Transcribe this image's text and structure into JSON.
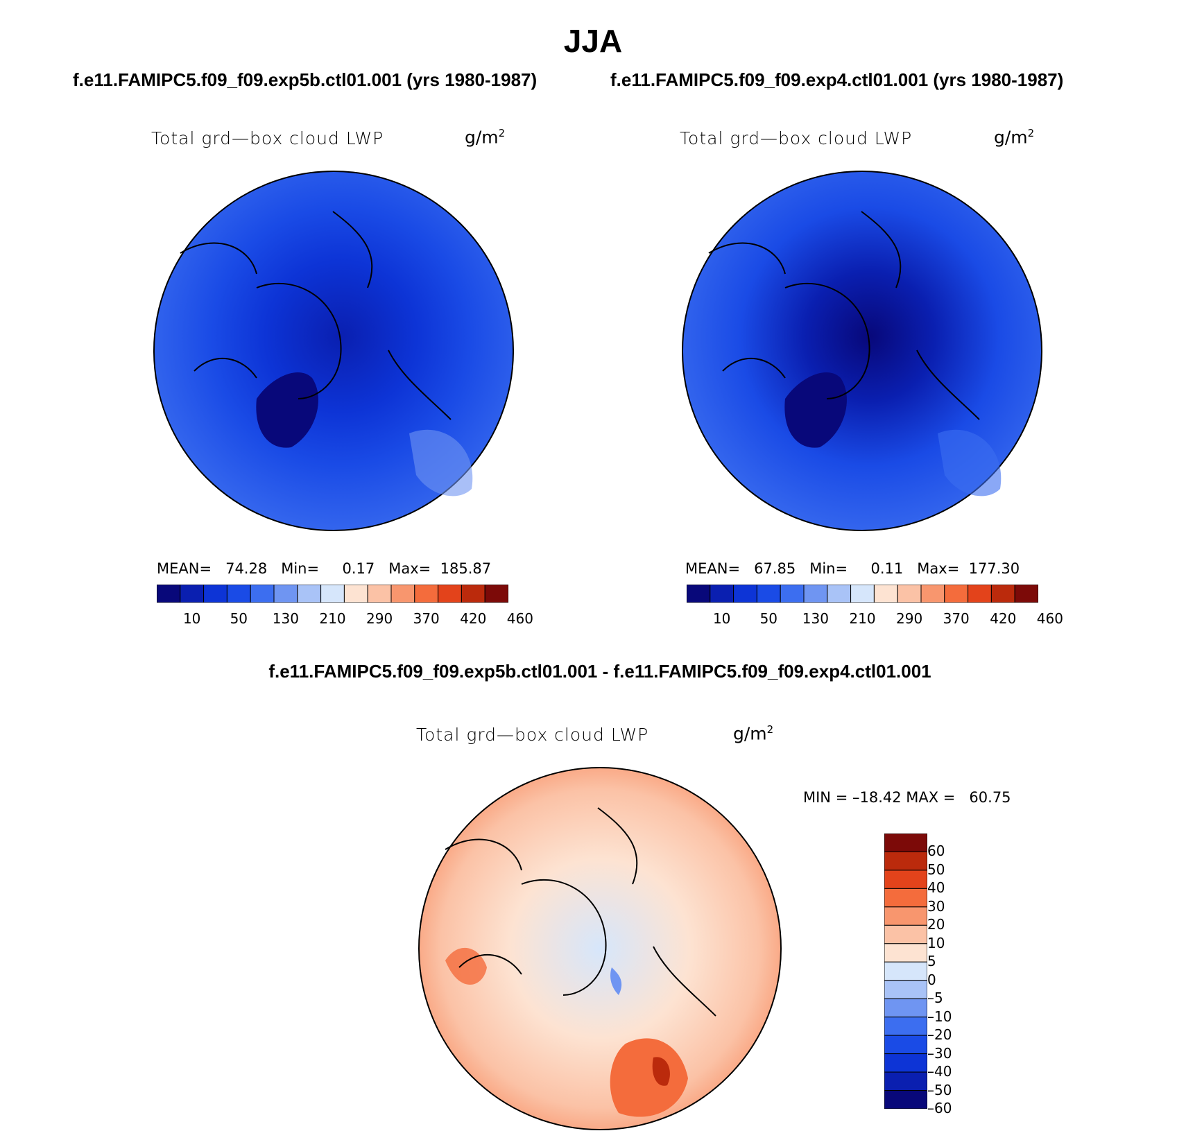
{
  "title": "JJA",
  "cases": {
    "left": "f.e11.FAMIPC5.f09_f09.exp5b.ctl01.001 (yrs 1980-1987)",
    "right": "f.e11.FAMIPC5.f09_f09.exp4.ctl01.001 (yrs 1980-1987)",
    "difference": "f.e11.FAMIPC5.f09_f09.exp5b.ctl01.001 - f.e11.FAMIPC5.f09_f09.exp4.ctl01.001"
  },
  "panels": [
    {
      "variable": "Total grd—box cloud LWP",
      "units": "g/m",
      "units_exp": "2",
      "stats": "MEAN=   74.28   Min=     0.17   Max=  185.87",
      "mean": 74.28,
      "min": 0.17,
      "max": 185.87,
      "colorbar_ticks": [
        "10",
        "50",
        "130",
        "210",
        "290",
        "370",
        "420",
        "460"
      ]
    },
    {
      "variable": "Total grd—box cloud LWP",
      "units": "g/m",
      "units_exp": "2",
      "stats": "MEAN=   67.85   Min=     0.11   Max=  177.30",
      "mean": 67.85,
      "min": 0.11,
      "max": 177.3,
      "colorbar_ticks": [
        "10",
        "50",
        "130",
        "210",
        "290",
        "370",
        "420",
        "460"
      ]
    },
    {
      "variable": "Total grd—box cloud LWP",
      "units": "g/m",
      "units_exp": "2",
      "stats": "MIN = –18.42 MAX =   60.75",
      "min": -18.42,
      "max": 60.75,
      "colorbar_ticks": [
        "60",
        "50",
        "40",
        "30",
        "20",
        "10",
        "5",
        "0",
        "–5",
        "–10",
        "–20",
        "–30",
        "–40",
        "–50",
        "–60"
      ]
    }
  ],
  "colors": {
    "abs_scale": [
      "#08087a",
      "#0a1fb0",
      "#0d34d6",
      "#1a4be6",
      "#3c6ef0",
      "#6f95f2",
      "#a9c3f7",
      "#d6e6fb",
      "#fde3d2",
      "#fbc2a6",
      "#f8966e",
      "#f46c3c",
      "#e3431b",
      "#bb2a0c",
      "#7c0a08"
    ],
    "diff_scale": [
      "#08087a",
      "#0a1fb0",
      "#0d34d6",
      "#1a4be6",
      "#3c6ef0",
      "#6f95f2",
      "#a9c3f7",
      "#d6e6fb",
      "#fde3d2",
      "#fbc2a6",
      "#f8966e",
      "#f46c3c",
      "#e3431b",
      "#bb2a0c",
      "#7c0a08"
    ]
  }
}
